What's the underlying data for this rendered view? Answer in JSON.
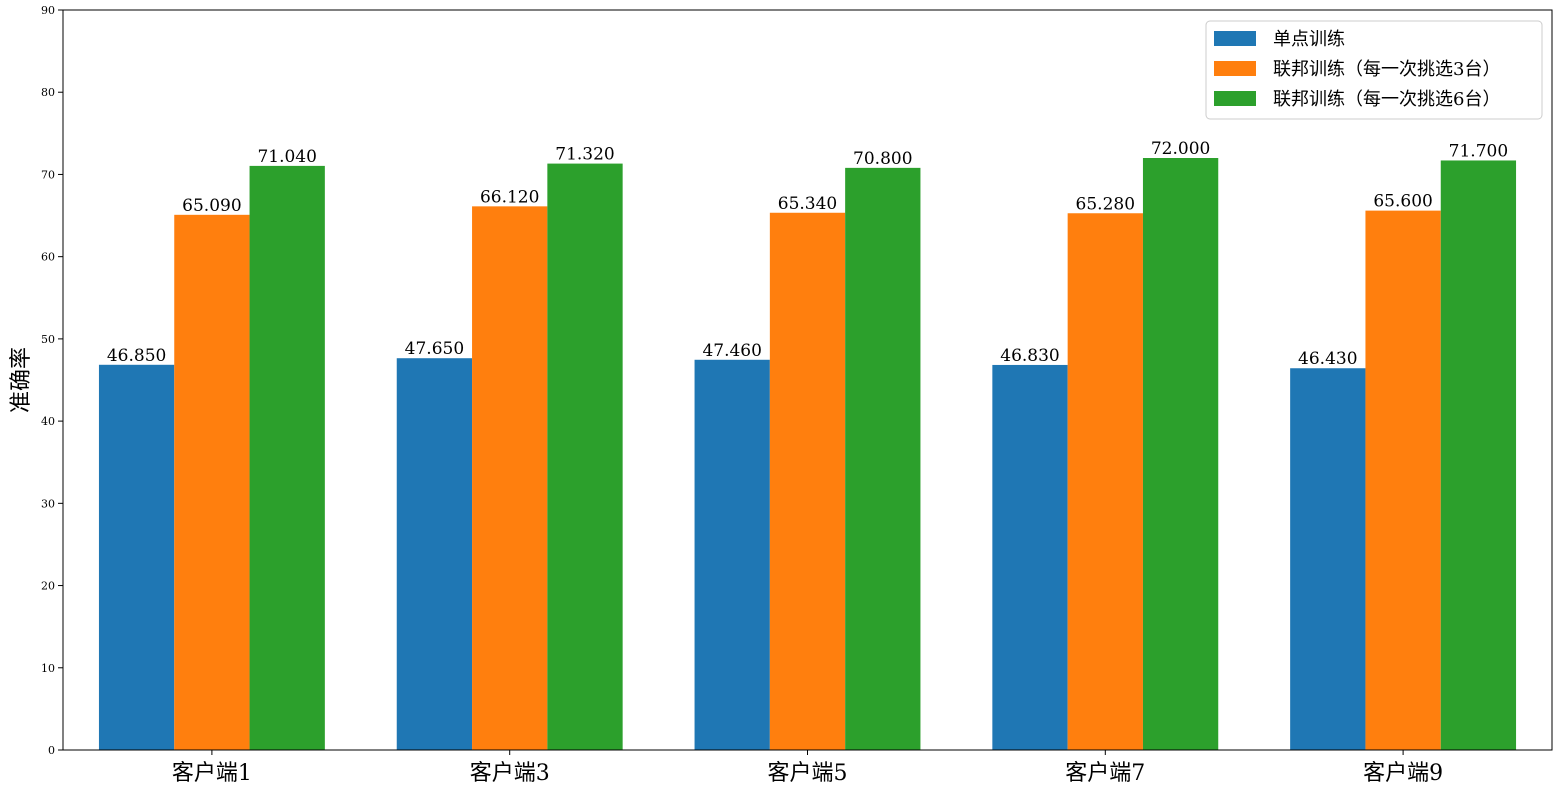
{
  "chart_data": {
    "type": "bar",
    "ylabel": "准确率",
    "ylim": [
      0,
      90
    ],
    "yticks": [
      0,
      10,
      20,
      30,
      40,
      50,
      60,
      70,
      80,
      90
    ],
    "categories": [
      "客户端1",
      "客户端3",
      "客户端5",
      "客户端7",
      "客户端9"
    ],
    "series": [
      {
        "name": "单点训练",
        "color": "#1f77b4",
        "values": [
          46.85,
          47.65,
          47.46,
          46.83,
          46.43
        ],
        "labels": [
          "46.850",
          "47.650",
          "47.460",
          "46.830",
          "46.430"
        ]
      },
      {
        "name": "联邦训练（每一次挑选3台）",
        "color": "#ff7f0e",
        "values": [
          65.09,
          66.12,
          65.34,
          65.28,
          65.6
        ],
        "labels": [
          "65.090",
          "66.120",
          "65.340",
          "65.280",
          "65.600"
        ]
      },
      {
        "name": "联邦训练（每一次挑选6台）",
        "color": "#2ca02c",
        "values": [
          71.04,
          71.32,
          70.8,
          72.0,
          71.7
        ],
        "labels": [
          "71.040",
          "71.320",
          "70.800",
          "72.000",
          "71.700"
        ]
      }
    ],
    "legend_position": "top-right",
    "grid": false
  }
}
